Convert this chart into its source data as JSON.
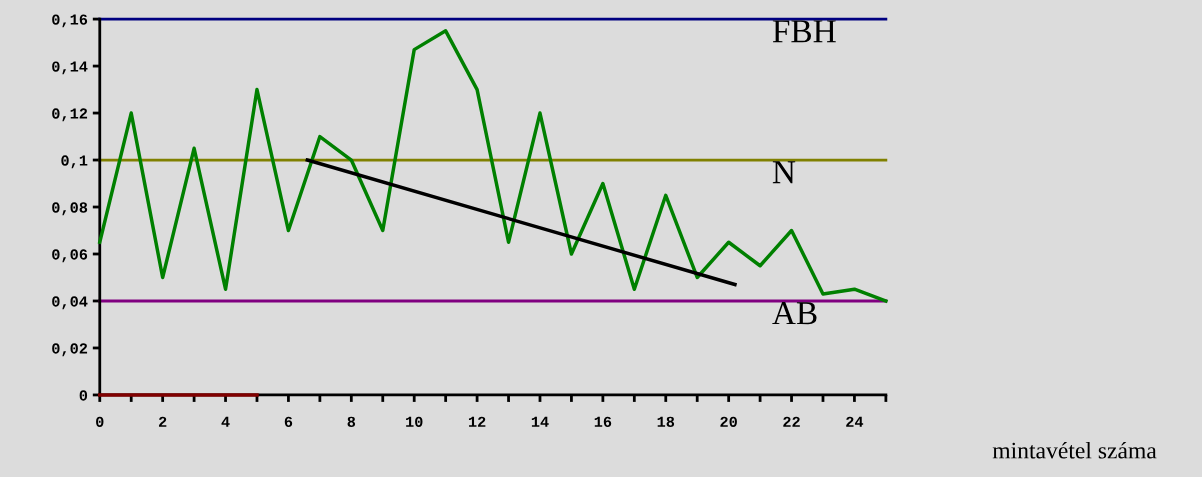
{
  "chart_data": {
    "type": "line",
    "xlabel": "mintavétel száma",
    "xlim": [
      0,
      25
    ],
    "xticks": [
      0,
      {
        "value": 1,
        "label": null
      },
      2,
      {
        "value": 3,
        "label": null
      },
      4,
      {
        "value": 5,
        "label": null
      },
      6,
      {
        "value": 7,
        "label": null
      },
      8,
      {
        "value": 9,
        "label": null
      },
      10,
      {
        "value": 11,
        "label": null
      },
      12,
      {
        "value": 13,
        "label": null
      },
      14,
      {
        "value": 15,
        "label": null
      },
      16,
      {
        "value": 17,
        "label": null
      },
      18,
      {
        "value": 19,
        "label": null
      },
      20,
      {
        "value": 21,
        "label": null
      },
      22,
      {
        "value": 23,
        "label": null
      },
      24,
      {
        "value": 25,
        "label": null
      }
    ],
    "ylim": [
      0,
      0.16
    ],
    "yticks": [
      {
        "value": 0,
        "label": "0"
      },
      {
        "value": 0.02,
        "label": "0,02"
      },
      {
        "value": 0.04,
        "label": "0,04"
      },
      {
        "value": 0.06,
        "label": "0,06"
      },
      {
        "value": 0.08,
        "label": "0,08"
      },
      {
        "value": 0.1,
        "label": "0,1"
      },
      {
        "value": 0.12,
        "label": "0,12"
      },
      {
        "value": 0.14,
        "label": "0,14"
      },
      {
        "value": 0.16,
        "label": "0,16"
      }
    ],
    "grid": false,
    "legend": false,
    "line_style": "solid",
    "series": [
      {
        "color": "#008000",
        "x": [
          0,
          1,
          2,
          3,
          4,
          5,
          6,
          7,
          8,
          9,
          10,
          11,
          12,
          13,
          14,
          15,
          16,
          17,
          18,
          19,
          20,
          21,
          22,
          23,
          24,
          25
        ],
        "values": [
          0.065,
          0.12,
          0.05,
          0.105,
          0.045,
          0.13,
          0.07,
          0.11,
          0.1,
          0.07,
          0.147,
          0.155,
          0.13,
          0.065,
          0.12,
          0.06,
          0.09,
          0.045,
          0.085,
          0.05,
          0.065,
          0.055,
          0.07,
          0.043,
          0.045,
          0.04
        ]
      },
      {
        "color": "#000000",
        "x": [
          6.6,
          20.2
        ],
        "values": [
          0.1,
          0.047
        ]
      },
      {
        "color": "#800000",
        "x": [
          0,
          5
        ],
        "values": [
          0,
          0
        ]
      }
    ],
    "ref_lines": [
      {
        "axis": "y",
        "value": 0.16,
        "label": "FBH",
        "color": "#000080"
      },
      {
        "axis": "y",
        "value": 0.1,
        "label": "N",
        "color": "#808000"
      },
      {
        "axis": "y",
        "value": 0.04,
        "label": "AB",
        "color": "#800080"
      }
    ]
  }
}
